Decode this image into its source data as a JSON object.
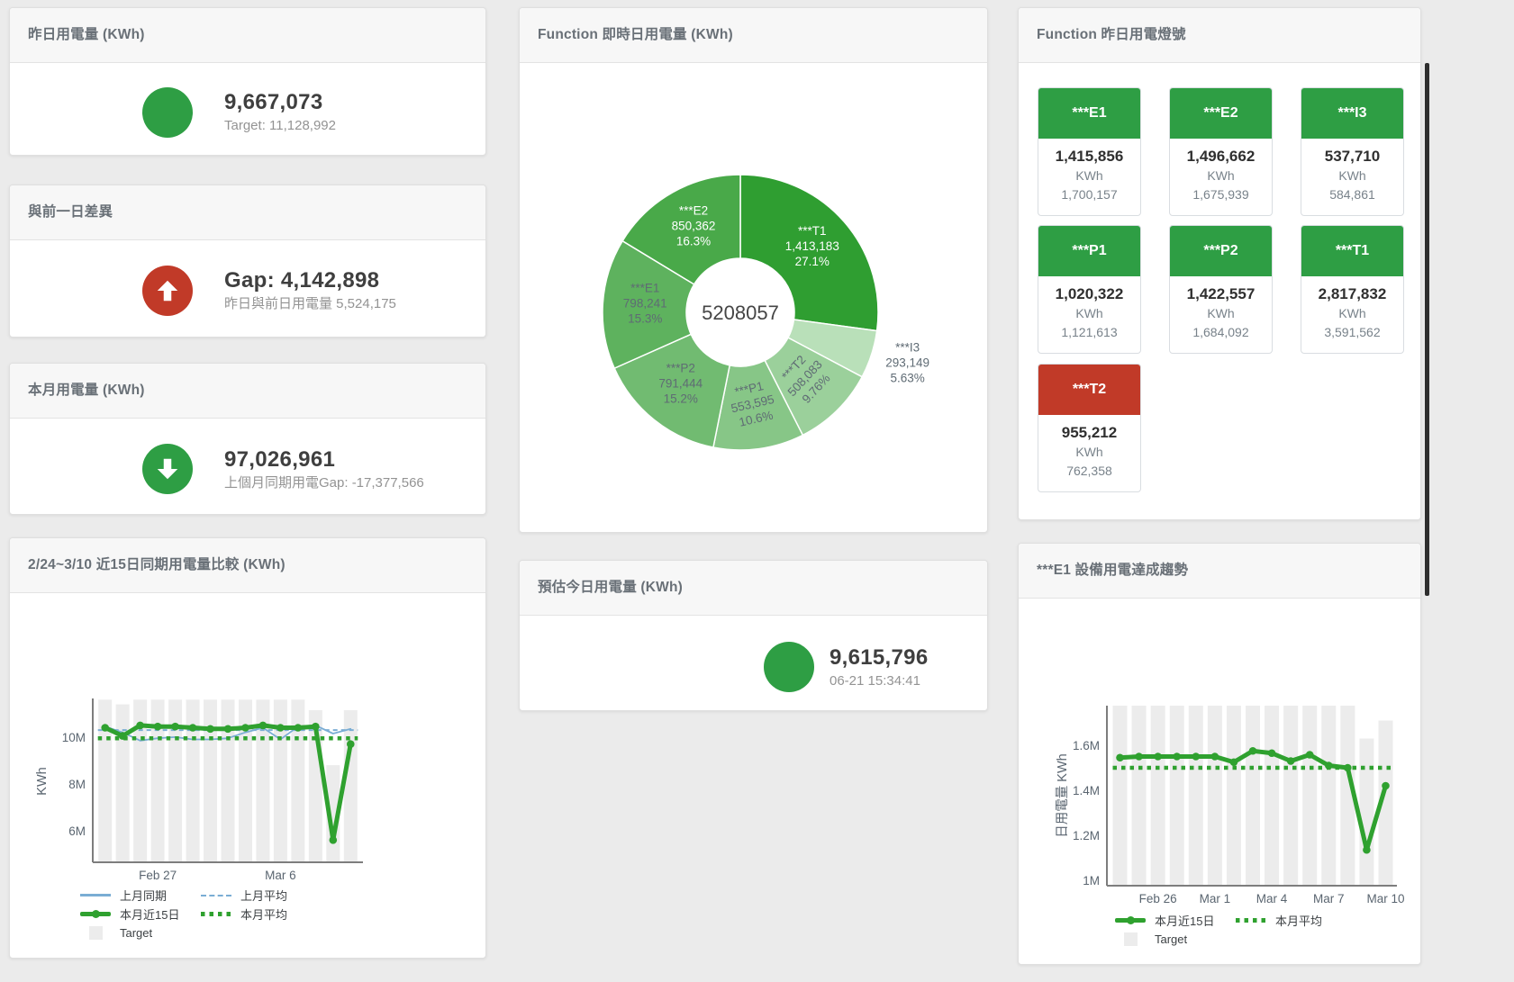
{
  "page": {
    "background": "#ebebeb"
  },
  "cards": {
    "yesterday": {
      "title": "昨日用電量 (KWh)",
      "value": "9,667,073",
      "subtitle": "Target: 11,128,992"
    },
    "gap_prev_day": {
      "title": "與前一日差異",
      "value": "Gap: 4,142,898",
      "subtitle": "昨日與前日用電量 5,524,175"
    },
    "month": {
      "title": "本月用電量 (KWh)",
      "value": "97,026,961",
      "subtitle": "上個月同期用電Gap: -17,377,566"
    },
    "compare15": {
      "title": "2/24~3/10 近15日同期用電量比較 (KWh)"
    },
    "realtime_pie": {
      "title": "Function 即時日用電量 (KWh)"
    },
    "today_estimate": {
      "title": "預估今日用電量 (KWh)",
      "value": "9,615,796",
      "subtitle": "06-21 15:34:41"
    },
    "lights": {
      "title": "Function 昨日用電燈號"
    },
    "e1_trend": {
      "title": "***E1 設備用電達成趨勢"
    }
  },
  "lights_tiles": [
    {
      "name": "***E1",
      "value": "1,415,856",
      "unit": "KWh",
      "target": "1,700,157",
      "status": "green"
    },
    {
      "name": "***E2",
      "value": "1,496,662",
      "unit": "KWh",
      "target": "1,675,939",
      "status": "green"
    },
    {
      "name": "***I3",
      "value": "537,710",
      "unit": "KWh",
      "target": "584,861",
      "status": "green"
    },
    {
      "name": "***P1",
      "value": "1,020,322",
      "unit": "KWh",
      "target": "1,121,613",
      "status": "green"
    },
    {
      "name": "***P2",
      "value": "1,422,557",
      "unit": "KWh",
      "target": "1,684,092",
      "status": "green"
    },
    {
      "name": "***T1",
      "value": "2,817,832",
      "unit": "KWh",
      "target": "3,591,562",
      "status": "green"
    },
    {
      "name": "***T2",
      "value": "955,212",
      "unit": "KWh",
      "target": "762,358",
      "status": "red"
    }
  ],
  "chart_data": [
    {
      "type": "pie",
      "title": "Function 即時日用電量 (KWh)",
      "center_total": "5208057",
      "slices": [
        {
          "name": "***T1",
          "value": 1413183,
          "pct": "27.1%",
          "color": "#2f9e31",
          "label_color": "#ffffff"
        },
        {
          "name": "***I3",
          "value": 293149,
          "pct": "5.63%",
          "color": "#b9e0b9",
          "label_color": "#5f6b74",
          "label_outside": true
        },
        {
          "name": "***T2",
          "value": 508083,
          "pct": "9.76%",
          "color": "#9bd09b",
          "label_color": "#5f6b74",
          "label_rotate": -47
        },
        {
          "name": "***P1",
          "value": 553595,
          "pct": "10.6%",
          "color": "#87c687",
          "label_color": "#5f6b74",
          "label_rotate": -13
        },
        {
          "name": "***P2",
          "value": 791444,
          "pct": "15.2%",
          "color": "#71bb71",
          "label_color": "#5f6b74"
        },
        {
          "name": "***E1",
          "value": 798241,
          "pct": "15.3%",
          "color": "#5eb25e",
          "label_color": "#5f6b74"
        },
        {
          "name": "***E2",
          "value": 850362,
          "pct": "16.3%",
          "color": "#49a949",
          "label_color": "#ffffff"
        }
      ]
    },
    {
      "type": "line+bar",
      "title": "2/24~3/10 近15日同期用電量比較 (KWh)",
      "ylabel": "KWh",
      "unit": "M",
      "ylim": [
        4.65,
        11.65
      ],
      "y_ticks": [
        {
          "value": 6,
          "label": "6M"
        },
        {
          "value": 8,
          "label": "8M"
        },
        {
          "value": 10,
          "label": "10M"
        }
      ],
      "x_ticks": [
        {
          "day": 4,
          "label": "Feb 27"
        },
        {
          "day": 11,
          "label": "Mar 6"
        }
      ],
      "target_bars": [
        11.6,
        11.4,
        11.6,
        11.6,
        11.6,
        11.6,
        11.6,
        11.6,
        11.6,
        11.6,
        11.6,
        11.6,
        11.15,
        8.8,
        11.15
      ],
      "series": [
        {
          "name": "上月同期",
          "style": "solid-thin",
          "color": "#7aadd4",
          "values": [
            10.45,
            10.2,
            9.85,
            9.95,
            10.0,
            9.9,
            9.9,
            9.95,
            10.2,
            10.4,
            9.9,
            10.45,
            10.5,
            10.15,
            10.35
          ]
        },
        {
          "name": "上月平均",
          "style": "dashed",
          "color": "#7aadd4",
          "const": 10.3
        },
        {
          "name": "本月近15日",
          "style": "solid-thick",
          "color": "#2fa12f",
          "values": [
            10.4,
            10.05,
            10.5,
            10.45,
            10.45,
            10.4,
            10.35,
            10.35,
            10.4,
            10.5,
            10.4,
            10.4,
            10.45,
            5.6,
            9.7
          ]
        },
        {
          "name": "本月平均",
          "style": "dotted",
          "color": "#2fa12f",
          "const": 9.95
        }
      ],
      "legend": [
        {
          "label": "上月同期"
        },
        {
          "label": "上月平均"
        },
        {
          "label": "本月近15日"
        },
        {
          "label": "本月平均"
        },
        {
          "label": "Target"
        }
      ]
    },
    {
      "type": "line+bar",
      "title": "***E1 設備用電達成趨勢",
      "ylabel": "日用電量 KWh",
      "unit": "M",
      "ylim": [
        0.976,
        1.776
      ],
      "y_ticks": [
        {
          "value": 1.0,
          "label": "1M"
        },
        {
          "value": 1.2,
          "label": "1.2M"
        },
        {
          "value": 1.4,
          "label": "1.4M"
        },
        {
          "value": 1.6,
          "label": "1.6M"
        }
      ],
      "x_ticks": [
        {
          "day": 3,
          "label": "Feb 26"
        },
        {
          "day": 6,
          "label": "Mar 1"
        },
        {
          "day": 9,
          "label": "Mar 4"
        },
        {
          "day": 12,
          "label": "Mar 7"
        },
        {
          "day": 15,
          "label": "Mar 10"
        }
      ],
      "target_bars": [
        1.78,
        1.78,
        1.78,
        1.78,
        1.78,
        1.78,
        1.78,
        1.78,
        1.78,
        1.78,
        1.78,
        1.78,
        1.78,
        1.63,
        1.71
      ],
      "series": [
        {
          "name": "本月近15日",
          "style": "solid-thick",
          "color": "#2fa12f",
          "values": [
            1.545,
            1.55,
            1.55,
            1.55,
            1.55,
            1.55,
            1.525,
            1.575,
            1.565,
            1.53,
            1.558,
            1.51,
            1.5,
            1.135,
            1.42
          ]
        },
        {
          "name": "本月平均",
          "style": "dotted",
          "color": "#2fa12f",
          "const": 1.5
        }
      ],
      "legend": [
        {
          "label": "本月近15日"
        },
        {
          "label": "本月平均"
        },
        {
          "label": "Target"
        }
      ]
    }
  ],
  "colors": {
    "green": "#2e9e44",
    "red": "#c13a28",
    "target_bar": "#ececec",
    "blue_line": "#7aadd4",
    "green_line": "#2fa12f"
  }
}
